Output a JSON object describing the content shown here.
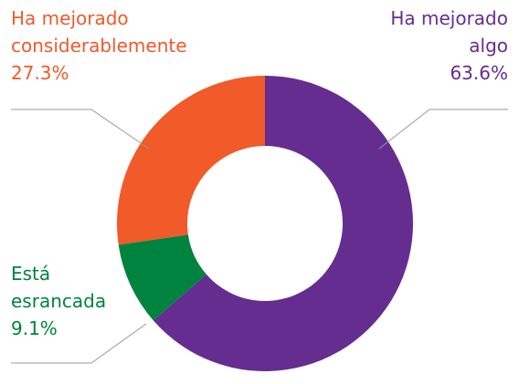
{
  "chart_data": {
    "type": "donut",
    "categories": [
      "Ha mejorado algo",
      "Está esrancada",
      "Ha mejorado considerablemente"
    ],
    "values": [
      63.6,
      9.1,
      27.3
    ],
    "value_labels": [
      "63.6%",
      "9.1%",
      "27.3%"
    ],
    "colors": [
      "#652d90",
      "#00833e",
      "#f15a29"
    ]
  }
}
